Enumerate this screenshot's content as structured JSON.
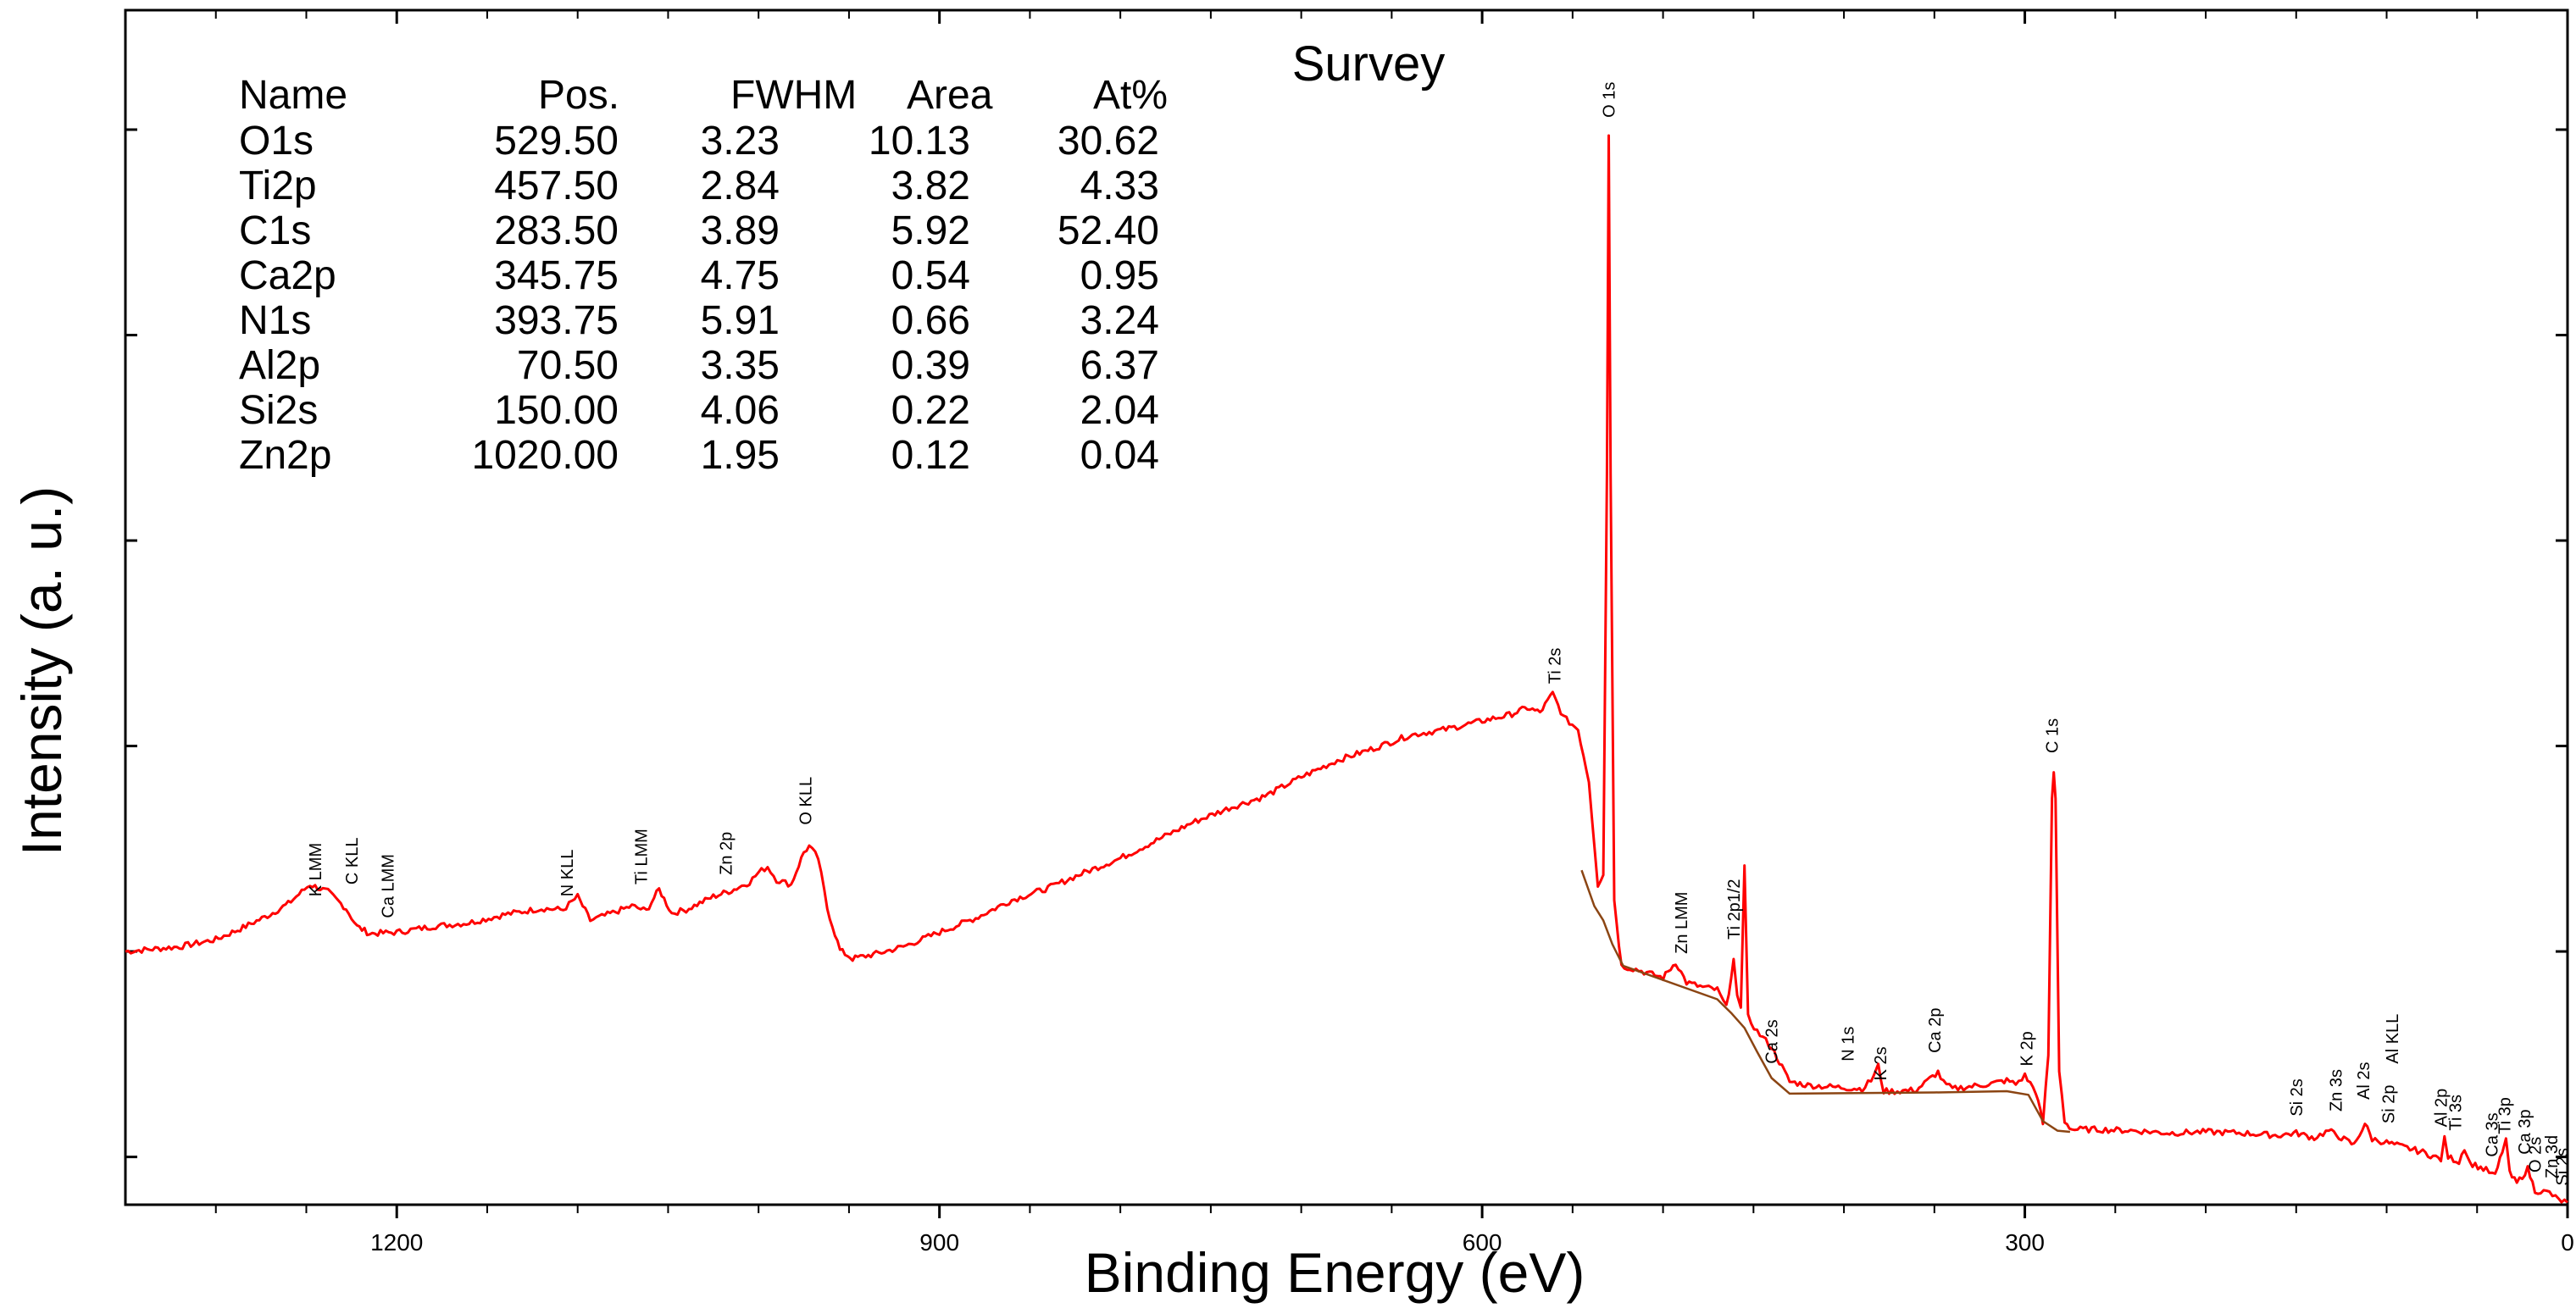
{
  "chart_data": {
    "type": "line",
    "title": "Survey",
    "xlabel": "Binding Energy (eV)",
    "ylabel": "Intensity (a. u.)",
    "xlim": [
      1350,
      0
    ],
    "ylim": [
      0,
      1000
    ],
    "x_ticks": [
      {
        "value": 1200,
        "label": "1200"
      },
      {
        "value": 900,
        "label": "900"
      },
      {
        "value": 600,
        "label": "600"
      },
      {
        "value": 300,
        "label": "300"
      },
      {
        "value": 0,
        "label": "0"
      }
    ],
    "x_minor_ticks": [
      1300,
      1250,
      1150,
      1100,
      1050,
      1000,
      950,
      850,
      800,
      750,
      700,
      650,
      550,
      500,
      450,
      400,
      350,
      250,
      200,
      150,
      100,
      50
    ],
    "y_ticks": [
      40,
      212,
      384,
      556,
      728,
      900
    ],
    "series": [
      {
        "name": "spectrum",
        "color": "#ff0000",
        "points": [
          [
            1350,
            212
          ],
          [
            1320,
            216
          ],
          [
            1300,
            222
          ],
          [
            1285,
            232
          ],
          [
            1270,
            243
          ],
          [
            1260,
            252
          ],
          [
            1248,
            268
          ],
          [
            1238,
            262
          ],
          [
            1228,
            248
          ],
          [
            1222,
            233
          ],
          [
            1215,
            227
          ],
          [
            1200,
            228
          ],
          [
            1180,
            233
          ],
          [
            1160,
            236
          ],
          [
            1140,
            243
          ],
          [
            1120,
            248
          ],
          [
            1108,
            247
          ],
          [
            1100,
            258
          ],
          [
            1093,
            238
          ],
          [
            1085,
            242
          ],
          [
            1070,
            250
          ],
          [
            1062,
            246
          ],
          [
            1055,
            264
          ],
          [
            1048,
            244
          ],
          [
            1040,
            247
          ],
          [
            1025,
            258
          ],
          [
            1015,
            263
          ],
          [
            1005,
            270
          ],
          [
            1000,
            278
          ],
          [
            995,
            283
          ],
          [
            990,
            272
          ],
          [
            982,
            268
          ],
          [
            975,
            295
          ],
          [
            972,
            300
          ],
          [
            967,
            290
          ],
          [
            962,
            248
          ],
          [
            955,
            213
          ],
          [
            948,
            206
          ],
          [
            935,
            210
          ],
          [
            920,
            216
          ],
          [
            900,
            228
          ],
          [
            880,
            240
          ],
          [
            860,
            255
          ],
          [
            840,
            265
          ],
          [
            820,
            278
          ],
          [
            800,
            290
          ],
          [
            780,
            305
          ],
          [
            760,
            320
          ],
          [
            740,
            332
          ],
          [
            720,
            342
          ],
          [
            700,
            358
          ],
          [
            680,
            372
          ],
          [
            660,
            382
          ],
          [
            640,
            393
          ],
          [
            620,
            398
          ],
          [
            600,
            405
          ],
          [
            585,
            410
          ],
          [
            575,
            416
          ],
          [
            568,
            412
          ],
          [
            561,
            428
          ],
          [
            555,
            408
          ],
          [
            547,
            398
          ],
          [
            541,
            355
          ],
          [
            536,
            268
          ],
          [
            533,
            276
          ],
          [
            531,
            612
          ],
          [
            530,
            895
          ],
          [
            529,
            612
          ],
          [
            527,
            255
          ],
          [
            523,
            200
          ],
          [
            515,
            197
          ],
          [
            500,
            190
          ],
          [
            493,
            203
          ],
          [
            487,
            186
          ],
          [
            478,
            182
          ],
          [
            470,
            180
          ],
          [
            465,
            165
          ],
          [
            461,
            205
          ],
          [
            459,
            173
          ],
          [
            457,
            165
          ],
          [
            455,
            284
          ],
          [
            453,
            157
          ],
          [
            448,
            145
          ],
          [
            440,
            132
          ],
          [
            430,
            103
          ],
          [
            420,
            100
          ],
          [
            400,
            98
          ],
          [
            390,
            97
          ],
          [
            385,
            104
          ],
          [
            381,
            116
          ],
          [
            378,
            95
          ],
          [
            372,
            95
          ],
          [
            360,
            96
          ],
          [
            348,
            111
          ],
          [
            345,
            102
          ],
          [
            340,
            97
          ],
          [
            320,
            101
          ],
          [
            310,
            104
          ],
          [
            305,
            101
          ],
          [
            300,
            108
          ],
          [
            294,
            95
          ],
          [
            290,
            68
          ],
          [
            287,
            125
          ],
          [
            285,
            340
          ],
          [
            284,
            362
          ],
          [
            283,
            340
          ],
          [
            281,
            112
          ],
          [
            278,
            70
          ],
          [
            274,
            63
          ],
          [
            260,
            63
          ],
          [
            240,
            62
          ],
          [
            220,
            60
          ],
          [
            200,
            61
          ],
          [
            180,
            60
          ],
          [
            160,
            58
          ],
          [
            150,
            60
          ],
          [
            140,
            56
          ],
          [
            132,
            62
          ],
          [
            125,
            56
          ],
          [
            118,
            50
          ],
          [
            112,
            68
          ],
          [
            108,
            55
          ],
          [
            100,
            52
          ],
          [
            90,
            48
          ],
          [
            80,
            44
          ],
          [
            70,
            38
          ],
          [
            68,
            55
          ],
          [
            66,
            40
          ],
          [
            60,
            36
          ],
          [
            57,
            48
          ],
          [
            54,
            35
          ],
          [
            45,
            29
          ],
          [
            40,
            24
          ],
          [
            36,
            45
          ],
          [
            34,
            55
          ],
          [
            32,
            26
          ],
          [
            28,
            18
          ],
          [
            22,
            30
          ],
          [
            18,
            12
          ],
          [
            10,
            10
          ],
          [
            5,
            4
          ],
          [
            0,
            2
          ]
        ]
      },
      {
        "name": "background",
        "color": "#8b4513",
        "points": [
          [
            545,
            280
          ],
          [
            538,
            250
          ],
          [
            533,
            238
          ],
          [
            528,
            218
          ],
          [
            522,
            200
          ],
          [
            470,
            172
          ],
          [
            462,
            160
          ],
          [
            455,
            148
          ],
          [
            448,
            128
          ],
          [
            440,
            106
          ],
          [
            430,
            93
          ],
          [
            350,
            94
          ],
          [
            310,
            95
          ],
          [
            298,
            92
          ],
          [
            290,
            70
          ],
          [
            282,
            62
          ],
          [
            275,
            61
          ]
        ]
      }
    ],
    "peak_labels": [
      {
        "label": "K LMM",
        "x": 1245,
        "y": 258
      },
      {
        "label": "C KLL",
        "x": 1225,
        "y": 268
      },
      {
        "label": "Ca LMM",
        "x": 1205,
        "y": 240
      },
      {
        "label": "N KLL",
        "x": 1106,
        "y": 258
      },
      {
        "label": "Ti LMM",
        "x": 1065,
        "y": 268
      },
      {
        "label": "Zn 2p",
        "x": 1018,
        "y": 276
      },
      {
        "label": "O KLL",
        "x": 974,
        "y": 318
      },
      {
        "label": "Ti 2s",
        "x": 560,
        "y": 436
      },
      {
        "label": "O 1s",
        "x": 530,
        "y": 910
      },
      {
        "label": "Zn LMM",
        "x": 490,
        "y": 210
      },
      {
        "label": "Ti 2p1/2",
        "x": 461,
        "y": 222
      },
      {
        "label": "Ca 2s",
        "x": 440,
        "y": 118
      },
      {
        "label": "N 1s",
        "x": 398,
        "y": 120
      },
      {
        "label": "K 2s",
        "x": 380,
        "y": 104
      },
      {
        "label": "Ca 2p",
        "x": 350,
        "y": 127
      },
      {
        "label": "K 2p",
        "x": 299,
        "y": 116
      },
      {
        "label": "C 1s",
        "x": 285,
        "y": 378
      },
      {
        "label": "Si 2s",
        "x": 150,
        "y": 74
      },
      {
        "label": "Zn 3s",
        "x": 128,
        "y": 78
      },
      {
        "label": "Al 2s",
        "x": 113,
        "y": 88
      },
      {
        "label": "Si 2p",
        "x": 99,
        "y": 68
      },
      {
        "label": "Al KLL",
        "x": 97,
        "y": 118
      },
      {
        "label": "Al 2p",
        "x": 70,
        "y": 65
      },
      {
        "label": "Ti 3s",
        "x": 62,
        "y": 62
      },
      {
        "label": "Ca 3s",
        "x": 42,
        "y": 40
      },
      {
        "label": "Ti 3p",
        "x": 35,
        "y": 59
      },
      {
        "label": "Ca 3p",
        "x": 24,
        "y": 42
      },
      {
        "label": "O 2s",
        "x": 18,
        "y": 27
      },
      {
        "label": "Zn 3d",
        "x": 9,
        "y": 22
      },
      {
        "label": "Si 2s",
        "x": 3,
        "y": 16
      }
    ],
    "table": {
      "headers": [
        "Name",
        "Pos.",
        "FWHM",
        "Area",
        "At%"
      ],
      "rows": [
        [
          "O1s",
          "529.50",
          "3.23",
          "10.13",
          "30.62"
        ],
        [
          "Ti2p",
          "457.50",
          "2.84",
          "3.82",
          "4.33"
        ],
        [
          "C1s",
          "283.50",
          "3.89",
          "5.92",
          "52.40"
        ],
        [
          "Ca2p",
          "345.75",
          "4.75",
          "0.54",
          "0.95"
        ],
        [
          "N1s",
          "393.75",
          "5.91",
          "0.66",
          "3.24"
        ],
        [
          "Al2p",
          "70.50",
          "3.35",
          "0.39",
          "6.37"
        ],
        [
          "Si2s",
          "150.00",
          "4.06",
          "0.22",
          "2.04"
        ],
        [
          "Zn2p",
          "1020.00",
          "1.95",
          "0.12",
          "0.04"
        ]
      ]
    }
  }
}
